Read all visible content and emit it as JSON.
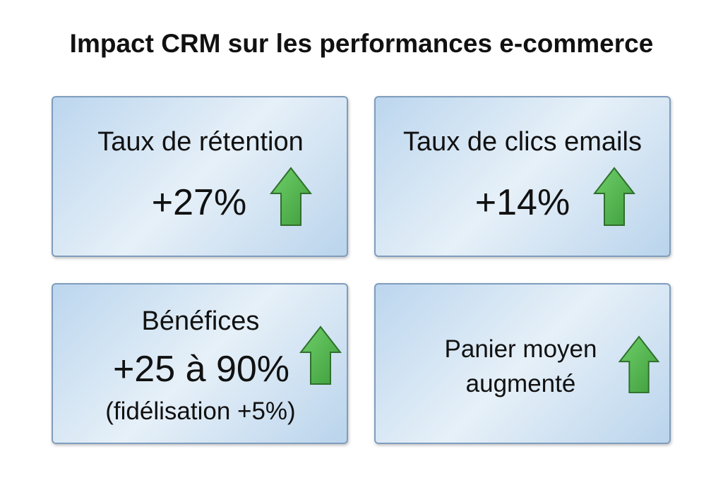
{
  "title": "Impact CRM sur les performances e-commerce",
  "cards": [
    {
      "label": "Taux de rétention",
      "value": "+27%"
    },
    {
      "label": "Taux de clics emails",
      "value": "+14%"
    },
    {
      "label": "Bénéfices",
      "value": "+25 à 90%",
      "note": "(fidélisation +5%)"
    },
    {
      "lines": [
        "Panier moyen",
        "augmenté"
      ]
    }
  ]
}
